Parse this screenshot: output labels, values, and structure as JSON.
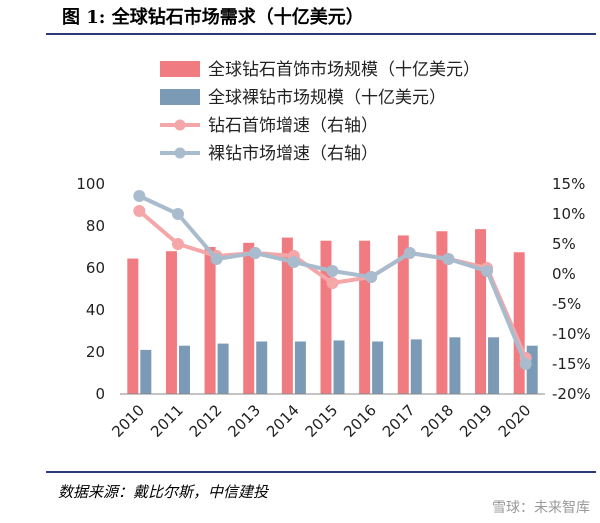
{
  "figure": {
    "title": "图 1: 全球钻石市场需求（十亿美元）",
    "source": "数据来源：戴比尔斯，中信建投",
    "watermark": "雪球：未来智库"
  },
  "colors": {
    "jewelry_bar": "#f07b80",
    "rough_bar": "#7a9ab5",
    "jewelry_line": "#f4a6a9",
    "rough_line": "#a9bccd",
    "rule": "#2c3a78"
  },
  "chart_data": {
    "type": "bar",
    "categories": [
      "2010",
      "2011",
      "2012",
      "2013",
      "2014",
      "2015",
      "2016",
      "2017",
      "2018",
      "2019",
      "2020"
    ],
    "ylim_left": [
      0,
      100
    ],
    "yticks_left": [
      0,
      20,
      40,
      60,
      80,
      100
    ],
    "ylim_right": [
      -20,
      15
    ],
    "yticks_right": [
      "-20%",
      "-15%",
      "-10%",
      "-5%",
      "0%",
      "5%",
      "10%",
      "15%"
    ],
    "legend_position": "top",
    "series": [
      {
        "name": "全球钻石首饰市场规模（十亿美元）",
        "type": "bar",
        "axis": "left",
        "values": [
          64.5,
          68,
          70,
          72,
          74.5,
          73,
          73,
          75.5,
          77.5,
          78.5,
          67.5
        ]
      },
      {
        "name": "全球裸钻市场规模（十亿美元）",
        "type": "bar",
        "axis": "left",
        "values": [
          21,
          23,
          24,
          25,
          25,
          25.5,
          25,
          26,
          27,
          27,
          23
        ]
      },
      {
        "name": "钻石首饰增速（右轴）",
        "type": "line",
        "axis": "right",
        "values": [
          10.5,
          5,
          3,
          3.5,
          3,
          -1.5,
          -0.5,
          3.5,
          2.5,
          1,
          -14
        ]
      },
      {
        "name": "裸钻市场增速（右轴）",
        "type": "line",
        "axis": "right",
        "values": [
          13,
          10,
          2.5,
          3.5,
          2,
          0.5,
          -0.5,
          3.5,
          2.5,
          0.5,
          -15
        ]
      }
    ]
  }
}
